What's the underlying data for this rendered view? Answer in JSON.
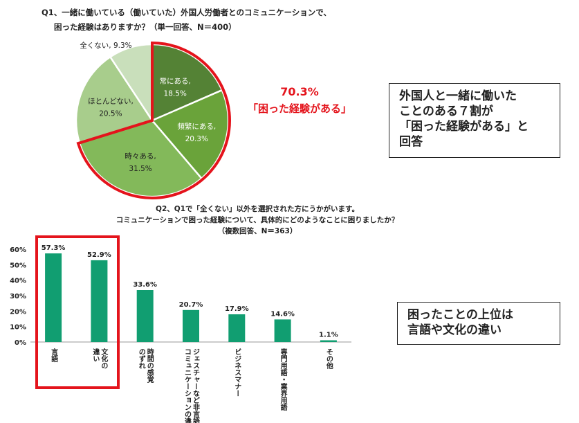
{
  "q1": {
    "title_line1": "Q1、一緒に働いている（働いていた）外国人労働者とのコミュニケーションで、",
    "title_line2": "困った経験はありますか？（単一回答、N＝400）"
  },
  "q2": {
    "title_line1": "Q2、Q1で「全くない」以外を選択された方にうかがいます。",
    "title_line2": "コミュニケーションで困った経験について、具体的にどのようなことに困りましたか？",
    "title_line3": "（複数回答、N＝363）"
  },
  "callout": {
    "percent": "70.3%",
    "label": "「困った経験がある」"
  },
  "note1": {
    "line1": "外国人と一緒に働いた",
    "line2": "ことのある７割が",
    "line3": "「困った経験がある」と",
    "line4": "回答"
  },
  "note2": {
    "line1": "困ったことの上位は",
    "line2": "言語や文化の違い"
  },
  "chart_data": [
    {
      "type": "pie",
      "slices": [
        {
          "label": "常にある",
          "value": 18.5,
          "value_label": "18.5%",
          "color": "#548235"
        },
        {
          "label": "頻繁にある",
          "value": 20.3,
          "value_label": "20.3%",
          "color": "#6aa33a"
        },
        {
          "label": "時々ある",
          "value": 31.5,
          "value_label": "31.5%",
          "color": "#83b95a"
        },
        {
          "label": "ほとんどない",
          "value": 20.5,
          "value_label": "20.5%",
          "color": "#a8cd8c"
        },
        {
          "label": "全くない",
          "value": 9.3,
          "value_label": "9.3%",
          "color": "#c9dfbb"
        }
      ],
      "highlight": "常にある + 頻繁にある + 時々ある"
    },
    {
      "type": "bar",
      "categories": [
        "言語",
        "文化の違い",
        "時間の感覚のずれ",
        "ジェスチャーなど非言語コミュニケーションの違い",
        "ビジネスマナー",
        "専門用語・業界用語",
        "その他"
      ],
      "category_lines": [
        [
          "言語"
        ],
        [
          "文化の",
          "違い"
        ],
        [
          "時間の感覚",
          "のずれ"
        ],
        [
          "ジェスチャーなど非言語",
          "コミュニケーションの違い"
        ],
        [
          "ビジネスマナー"
        ],
        [
          "専門用語・業界用語"
        ],
        [
          "その他"
        ]
      ],
      "values": [
        57.3,
        52.9,
        33.6,
        20.7,
        17.9,
        14.6,
        1.1
      ],
      "value_labels": [
        "57.3%",
        "52.9%",
        "33.6%",
        "20.7%",
        "17.9%",
        "14.6%",
        "1.1%"
      ],
      "yticks": [
        "0%",
        "10%",
        "20%",
        "30%",
        "40%",
        "50%",
        "60%"
      ],
      "ylim": [
        0,
        60
      ],
      "bar_color": "#119e71",
      "highlight_color": "#e4141c"
    }
  ]
}
